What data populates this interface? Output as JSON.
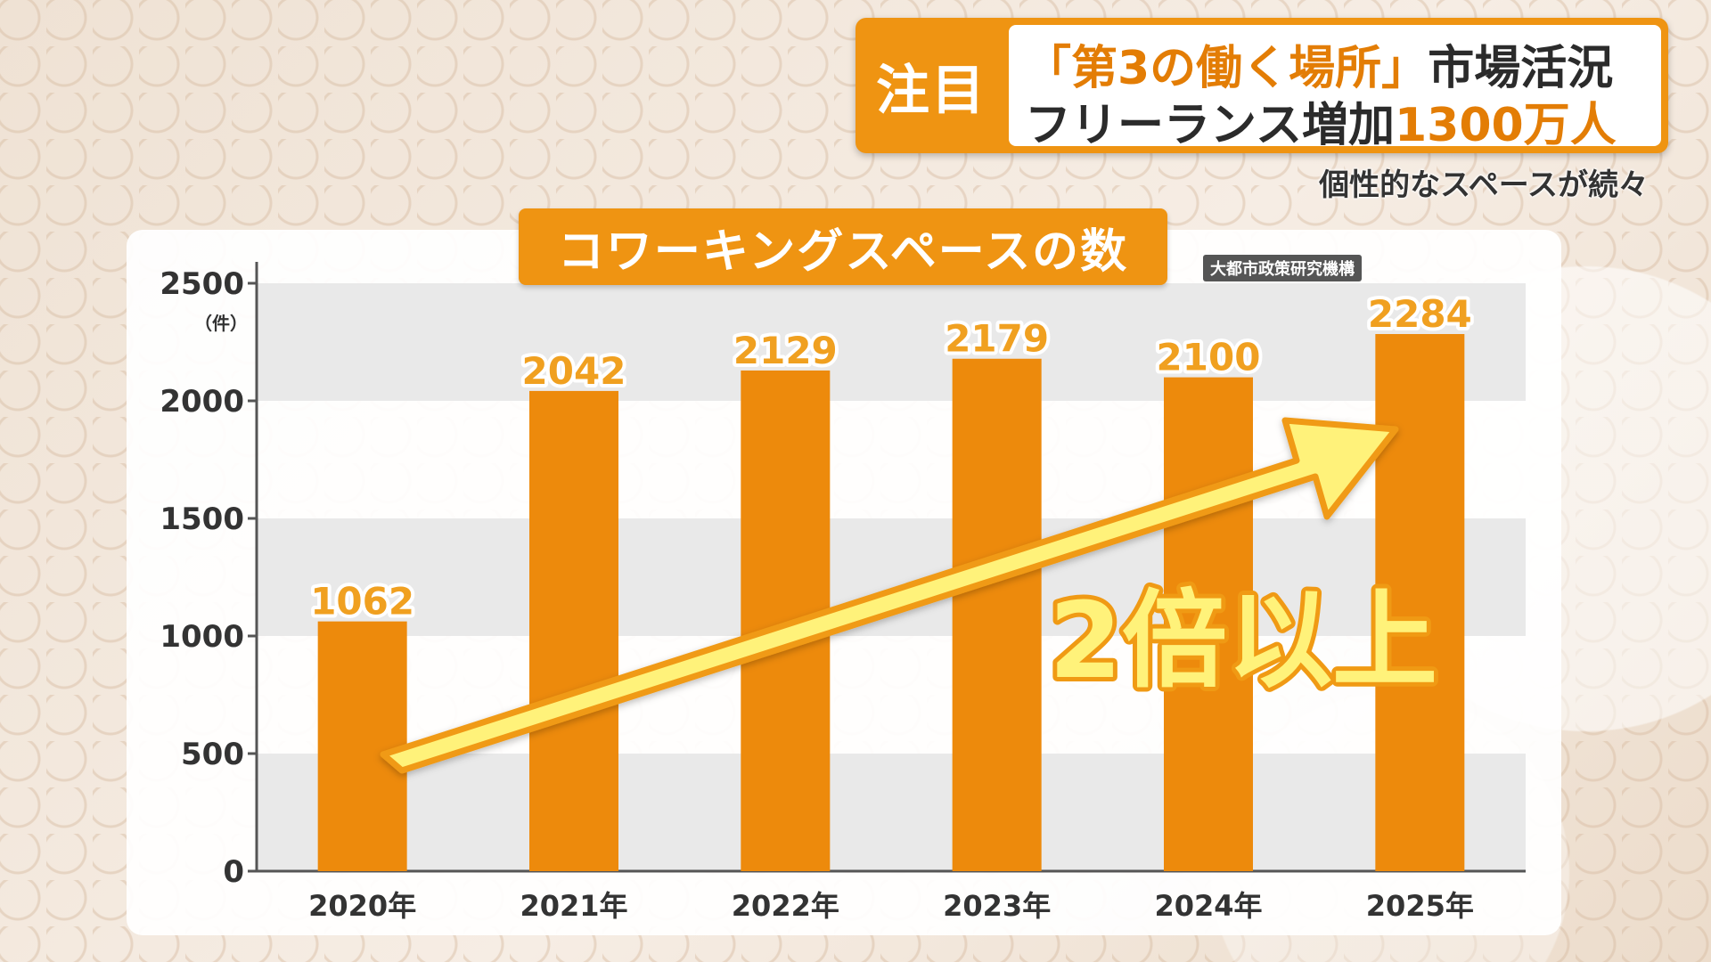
{
  "headline": {
    "tag": "注目",
    "line1_part1": "「第3の働く場所」",
    "line1_part2": "市場活況",
    "line2_part1": "フリーランス増加",
    "line2_part2": "1300万人"
  },
  "subtitle": "個性的なスペースが続々",
  "source": "大都市政策研究機構",
  "annotation": "2倍以上",
  "colors": {
    "accent": "#ef9412",
    "bar": "#ed8a0c",
    "arrow": "#fff27a"
  },
  "chart_data": {
    "type": "bar",
    "title": "コワーキングスペースの数",
    "unit": "（件）",
    "categories": [
      "2020年",
      "2021年",
      "2022年",
      "2023年",
      "2024年",
      "2025年"
    ],
    "values": [
      1062,
      2042,
      2129,
      2179,
      2100,
      2284
    ],
    "value_labels": [
      "1062",
      "2042",
      "2129",
      "2179",
      "2100",
      "2284"
    ],
    "ylim": [
      0,
      2500
    ],
    "yticks": [
      0,
      500,
      1000,
      1500,
      2000,
      2500
    ],
    "ytick_labels": [
      "0",
      "500",
      "1000",
      "1500",
      "2000",
      "2500"
    ],
    "grid": "alternating-bands",
    "legend": "none"
  }
}
